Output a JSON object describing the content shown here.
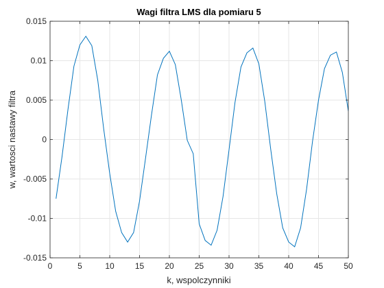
{
  "chart_data": {
    "type": "line",
    "title": "Wagi filtra LMS dla pomiaru 5",
    "xlabel": "k, wspolczynniki",
    "ylabel": "w, wartosci nastawy filtra",
    "xlim": [
      0,
      50
    ],
    "ylim": [
      -0.015,
      0.015
    ],
    "grid": true,
    "box": true,
    "x_ticks": [
      0,
      5,
      10,
      15,
      20,
      25,
      30,
      35,
      40,
      45,
      50
    ],
    "x_tick_labels": [
      "0",
      "5",
      "10",
      "15",
      "20",
      "25",
      "30",
      "35",
      "40",
      "45",
      "50"
    ],
    "y_ticks": [
      -0.015,
      -0.01,
      -0.005,
      0,
      0.005,
      0.01,
      0.015
    ],
    "y_tick_labels": [
      "-0.015",
      "-0.01",
      "-0.005",
      "0",
      "0.005",
      "0.01",
      "0.015"
    ],
    "colors": {
      "line": "#0072BD",
      "axis": "#262626",
      "grid": "#e6e6e6"
    },
    "series": [
      {
        "name": "w",
        "x": [
          1,
          2,
          3,
          4,
          5,
          6,
          7,
          8,
          9,
          10,
          11,
          12,
          13,
          14,
          15,
          16,
          17,
          18,
          19,
          20,
          21,
          22,
          23,
          24,
          25,
          26,
          27,
          28,
          29,
          30,
          31,
          32,
          33,
          34,
          35,
          36,
          37,
          38,
          39,
          40,
          41,
          42,
          43,
          44,
          45,
          46,
          47,
          48,
          49,
          50
        ],
        "values": [
          -0.0075,
          -0.0022,
          0.0038,
          0.0093,
          0.012,
          0.0131,
          0.0119,
          0.0075,
          0.0013,
          -0.0043,
          -0.0091,
          -0.0118,
          -0.013,
          -0.0118,
          -0.0078,
          -0.0024,
          0.0031,
          0.0082,
          0.0103,
          0.0112,
          0.0095,
          0.005,
          -0.0001,
          -0.0018,
          -0.0107,
          -0.0128,
          -0.0134,
          -0.0115,
          -0.0072,
          -0.0013,
          0.0047,
          0.0092,
          0.011,
          0.0116,
          0.0096,
          0.0048,
          -0.0013,
          -0.0069,
          -0.0112,
          -0.013,
          -0.0136,
          -0.0112,
          -0.0063,
          -0.0002,
          0.005,
          0.009,
          0.0107,
          0.0111,
          0.0085,
          0.0036
        ]
      }
    ]
  }
}
